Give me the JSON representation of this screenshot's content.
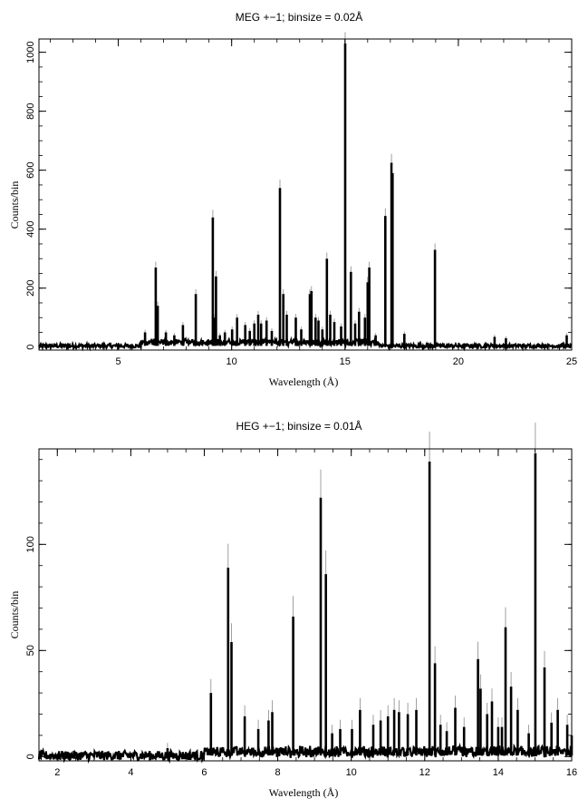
{
  "chart_data": [
    {
      "type": "line",
      "title": "MEG +−1; binsize = 0.02Å",
      "xlabel": "Wavelength (Å)",
      "ylabel": "Counts/bin",
      "xlim": [
        1.5,
        25
      ],
      "ylim": [
        -10,
        1045
      ],
      "xticks": [
        5,
        10,
        15,
        20,
        25
      ],
      "xtick_labels": [
        "5",
        "10",
        "15",
        "20",
        "25"
      ],
      "yticks": [
        0,
        200,
        400,
        600,
        800,
        1000
      ],
      "ytick_labels": [
        "0",
        "200",
        "400",
        "600",
        "800",
        "1000"
      ],
      "x_minor_step": 1,
      "y_minor_step": 50,
      "grid": false,
      "baseline": 4,
      "series_color": "#000000",
      "peaks": [
        {
          "x": 6.18,
          "y": 50
        },
        {
          "x": 6.65,
          "y": 270
        },
        {
          "x": 6.74,
          "y": 140
        },
        {
          "x": 7.1,
          "y": 50
        },
        {
          "x": 7.47,
          "y": 40
        },
        {
          "x": 7.85,
          "y": 75
        },
        {
          "x": 8.42,
          "y": 180
        },
        {
          "x": 9.17,
          "y": 440
        },
        {
          "x": 9.23,
          "y": 100
        },
        {
          "x": 9.31,
          "y": 240
        },
        {
          "x": 9.48,
          "y": 40
        },
        {
          "x": 9.7,
          "y": 50
        },
        {
          "x": 10.02,
          "y": 60
        },
        {
          "x": 10.24,
          "y": 100
        },
        {
          "x": 10.6,
          "y": 75
        },
        {
          "x": 10.8,
          "y": 55
        },
        {
          "x": 11.0,
          "y": 80
        },
        {
          "x": 11.17,
          "y": 110
        },
        {
          "x": 11.3,
          "y": 80
        },
        {
          "x": 11.54,
          "y": 90
        },
        {
          "x": 11.77,
          "y": 55
        },
        {
          "x": 12.13,
          "y": 540
        },
        {
          "x": 12.28,
          "y": 180
        },
        {
          "x": 12.43,
          "y": 110
        },
        {
          "x": 12.83,
          "y": 100
        },
        {
          "x": 13.07,
          "y": 60
        },
        {
          "x": 13.45,
          "y": 180
        },
        {
          "x": 13.52,
          "y": 190
        },
        {
          "x": 13.7,
          "y": 100
        },
        {
          "x": 13.83,
          "y": 90
        },
        {
          "x": 14.0,
          "y": 60
        },
        {
          "x": 14.2,
          "y": 300
        },
        {
          "x": 14.35,
          "y": 110
        },
        {
          "x": 14.53,
          "y": 85
        },
        {
          "x": 14.83,
          "y": 70
        },
        {
          "x": 15.01,
          "y": 1030
        },
        {
          "x": 15.26,
          "y": 255
        },
        {
          "x": 15.45,
          "y": 80
        },
        {
          "x": 15.62,
          "y": 120
        },
        {
          "x": 15.88,
          "y": 100
        },
        {
          "x": 16.0,
          "y": 220
        },
        {
          "x": 16.07,
          "y": 270
        },
        {
          "x": 16.35,
          "y": 40
        },
        {
          "x": 16.78,
          "y": 445
        },
        {
          "x": 17.05,
          "y": 625
        },
        {
          "x": 17.1,
          "y": 590
        },
        {
          "x": 17.62,
          "y": 45
        },
        {
          "x": 18.63,
          "y": 15
        },
        {
          "x": 18.97,
          "y": 330
        },
        {
          "x": 21.6,
          "y": 35
        },
        {
          "x": 22.1,
          "y": 30
        },
        {
          "x": 24.78,
          "y": 40
        }
      ]
    },
    {
      "type": "line",
      "title": "HEG +−1; binsize = 0.01Å",
      "xlabel": "Wavelength (Å)",
      "ylabel": "Counts/bin",
      "xlim": [
        1.5,
        16
      ],
      "ylim": [
        -2,
        145
      ],
      "xticks": [
        2,
        4,
        6,
        8,
        10,
        12,
        14,
        16
      ],
      "xtick_labels": [
        "2",
        "4",
        "6",
        "8",
        "10",
        "12",
        "14",
        "16"
      ],
      "yticks": [
        0,
        50,
        100
      ],
      "ytick_labels": [
        "0",
        "50",
        "100"
      ],
      "x_minor_step": 0.5,
      "y_minor_step": 10,
      "grid": false,
      "baseline": 0.5,
      "series_color": "#000000",
      "peaks": [
        {
          "x": 5.0,
          "y": 4
        },
        {
          "x": 6.18,
          "y": 30
        },
        {
          "x": 6.65,
          "y": 89
        },
        {
          "x": 6.74,
          "y": 54
        },
        {
          "x": 7.1,
          "y": 19
        },
        {
          "x": 7.47,
          "y": 13
        },
        {
          "x": 7.75,
          "y": 17
        },
        {
          "x": 7.85,
          "y": 21
        },
        {
          "x": 8.42,
          "y": 66
        },
        {
          "x": 9.17,
          "y": 122
        },
        {
          "x": 9.31,
          "y": 86
        },
        {
          "x": 9.48,
          "y": 11
        },
        {
          "x": 9.7,
          "y": 13
        },
        {
          "x": 10.02,
          "y": 13
        },
        {
          "x": 10.24,
          "y": 22
        },
        {
          "x": 10.6,
          "y": 15
        },
        {
          "x": 10.8,
          "y": 17
        },
        {
          "x": 11.0,
          "y": 19
        },
        {
          "x": 11.17,
          "y": 22
        },
        {
          "x": 11.3,
          "y": 21
        },
        {
          "x": 11.54,
          "y": 20
        },
        {
          "x": 11.77,
          "y": 22
        },
        {
          "x": 12.13,
          "y": 139
        },
        {
          "x": 12.28,
          "y": 44
        },
        {
          "x": 12.43,
          "y": 15
        },
        {
          "x": 12.6,
          "y": 12
        },
        {
          "x": 12.83,
          "y": 23
        },
        {
          "x": 13.07,
          "y": 14
        },
        {
          "x": 13.45,
          "y": 46
        },
        {
          "x": 13.52,
          "y": 32
        },
        {
          "x": 13.7,
          "y": 20
        },
        {
          "x": 13.83,
          "y": 26
        },
        {
          "x": 14.0,
          "y": 14
        },
        {
          "x": 14.1,
          "y": 14
        },
        {
          "x": 14.2,
          "y": 61
        },
        {
          "x": 14.35,
          "y": 33
        },
        {
          "x": 14.53,
          "y": 22
        },
        {
          "x": 14.83,
          "y": 11
        },
        {
          "x": 15.01,
          "y": 143
        },
        {
          "x": 15.26,
          "y": 42
        },
        {
          "x": 15.45,
          "y": 16
        },
        {
          "x": 15.62,
          "y": 22
        },
        {
          "x": 15.88,
          "y": 15
        },
        {
          "x": 16.0,
          "y": 10
        }
      ]
    }
  ]
}
